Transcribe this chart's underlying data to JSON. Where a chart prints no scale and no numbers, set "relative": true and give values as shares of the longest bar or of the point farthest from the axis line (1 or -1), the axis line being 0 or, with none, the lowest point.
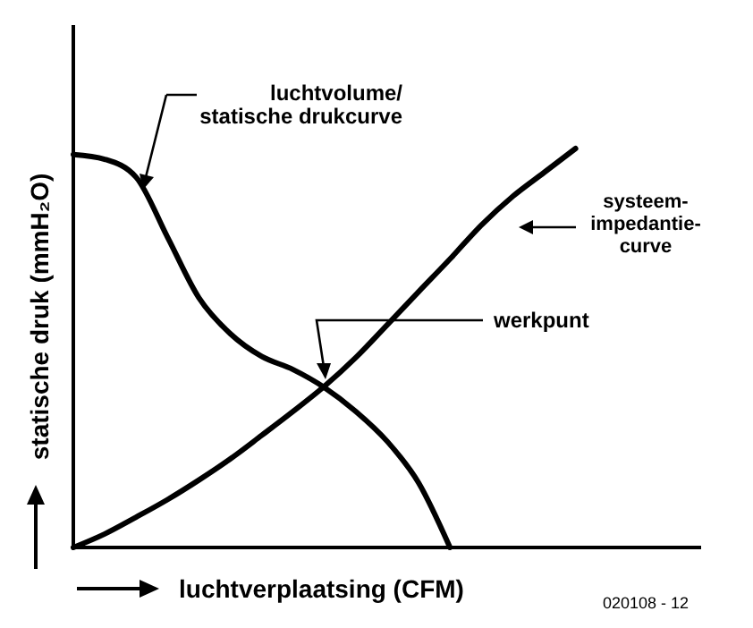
{
  "chart_data": {
    "type": "line",
    "relative": true,
    "xlabel": "luchtverplaatsing (CFM)",
    "ylabel": "statische druk (mmH₂O)",
    "marker": "none",
    "line_style": "solid",
    "grid": false,
    "categories": [
      null,
      null,
      null,
      null,
      null,
      null,
      null,
      null,
      null,
      null,
      null,
      null,
      null,
      null,
      null,
      null,
      null,
      null,
      null,
      null,
      null
    ],
    "series": [
      {
        "color": "#000000",
        "values": [
          0.985,
          0.973,
          0.928,
          0.778,
          0.626,
          0.536,
          0.479,
          0.446,
          0.401,
          0.341,
          0.266,
          0.162,
          0,
          null,
          null,
          null,
          null,
          null,
          null,
          null,
          null
        ]
      },
      {
        "color": "#000000",
        "values": [
          0,
          0.034,
          0.076,
          0.12,
          0.169,
          0.222,
          0.281,
          0.341,
          0.404,
          0.476,
          0.558,
          0.641,
          0.723,
          0.808,
          0.88,
          0.94,
          1,
          null,
          null,
          null,
          null
        ]
      }
    ],
    "annotations": [
      "luchtvolume/\nstatische drukcurve",
      "systeem-\nimpedantie-\ncurve",
      "werkpunt",
      "020108 - 12"
    ]
  }
}
